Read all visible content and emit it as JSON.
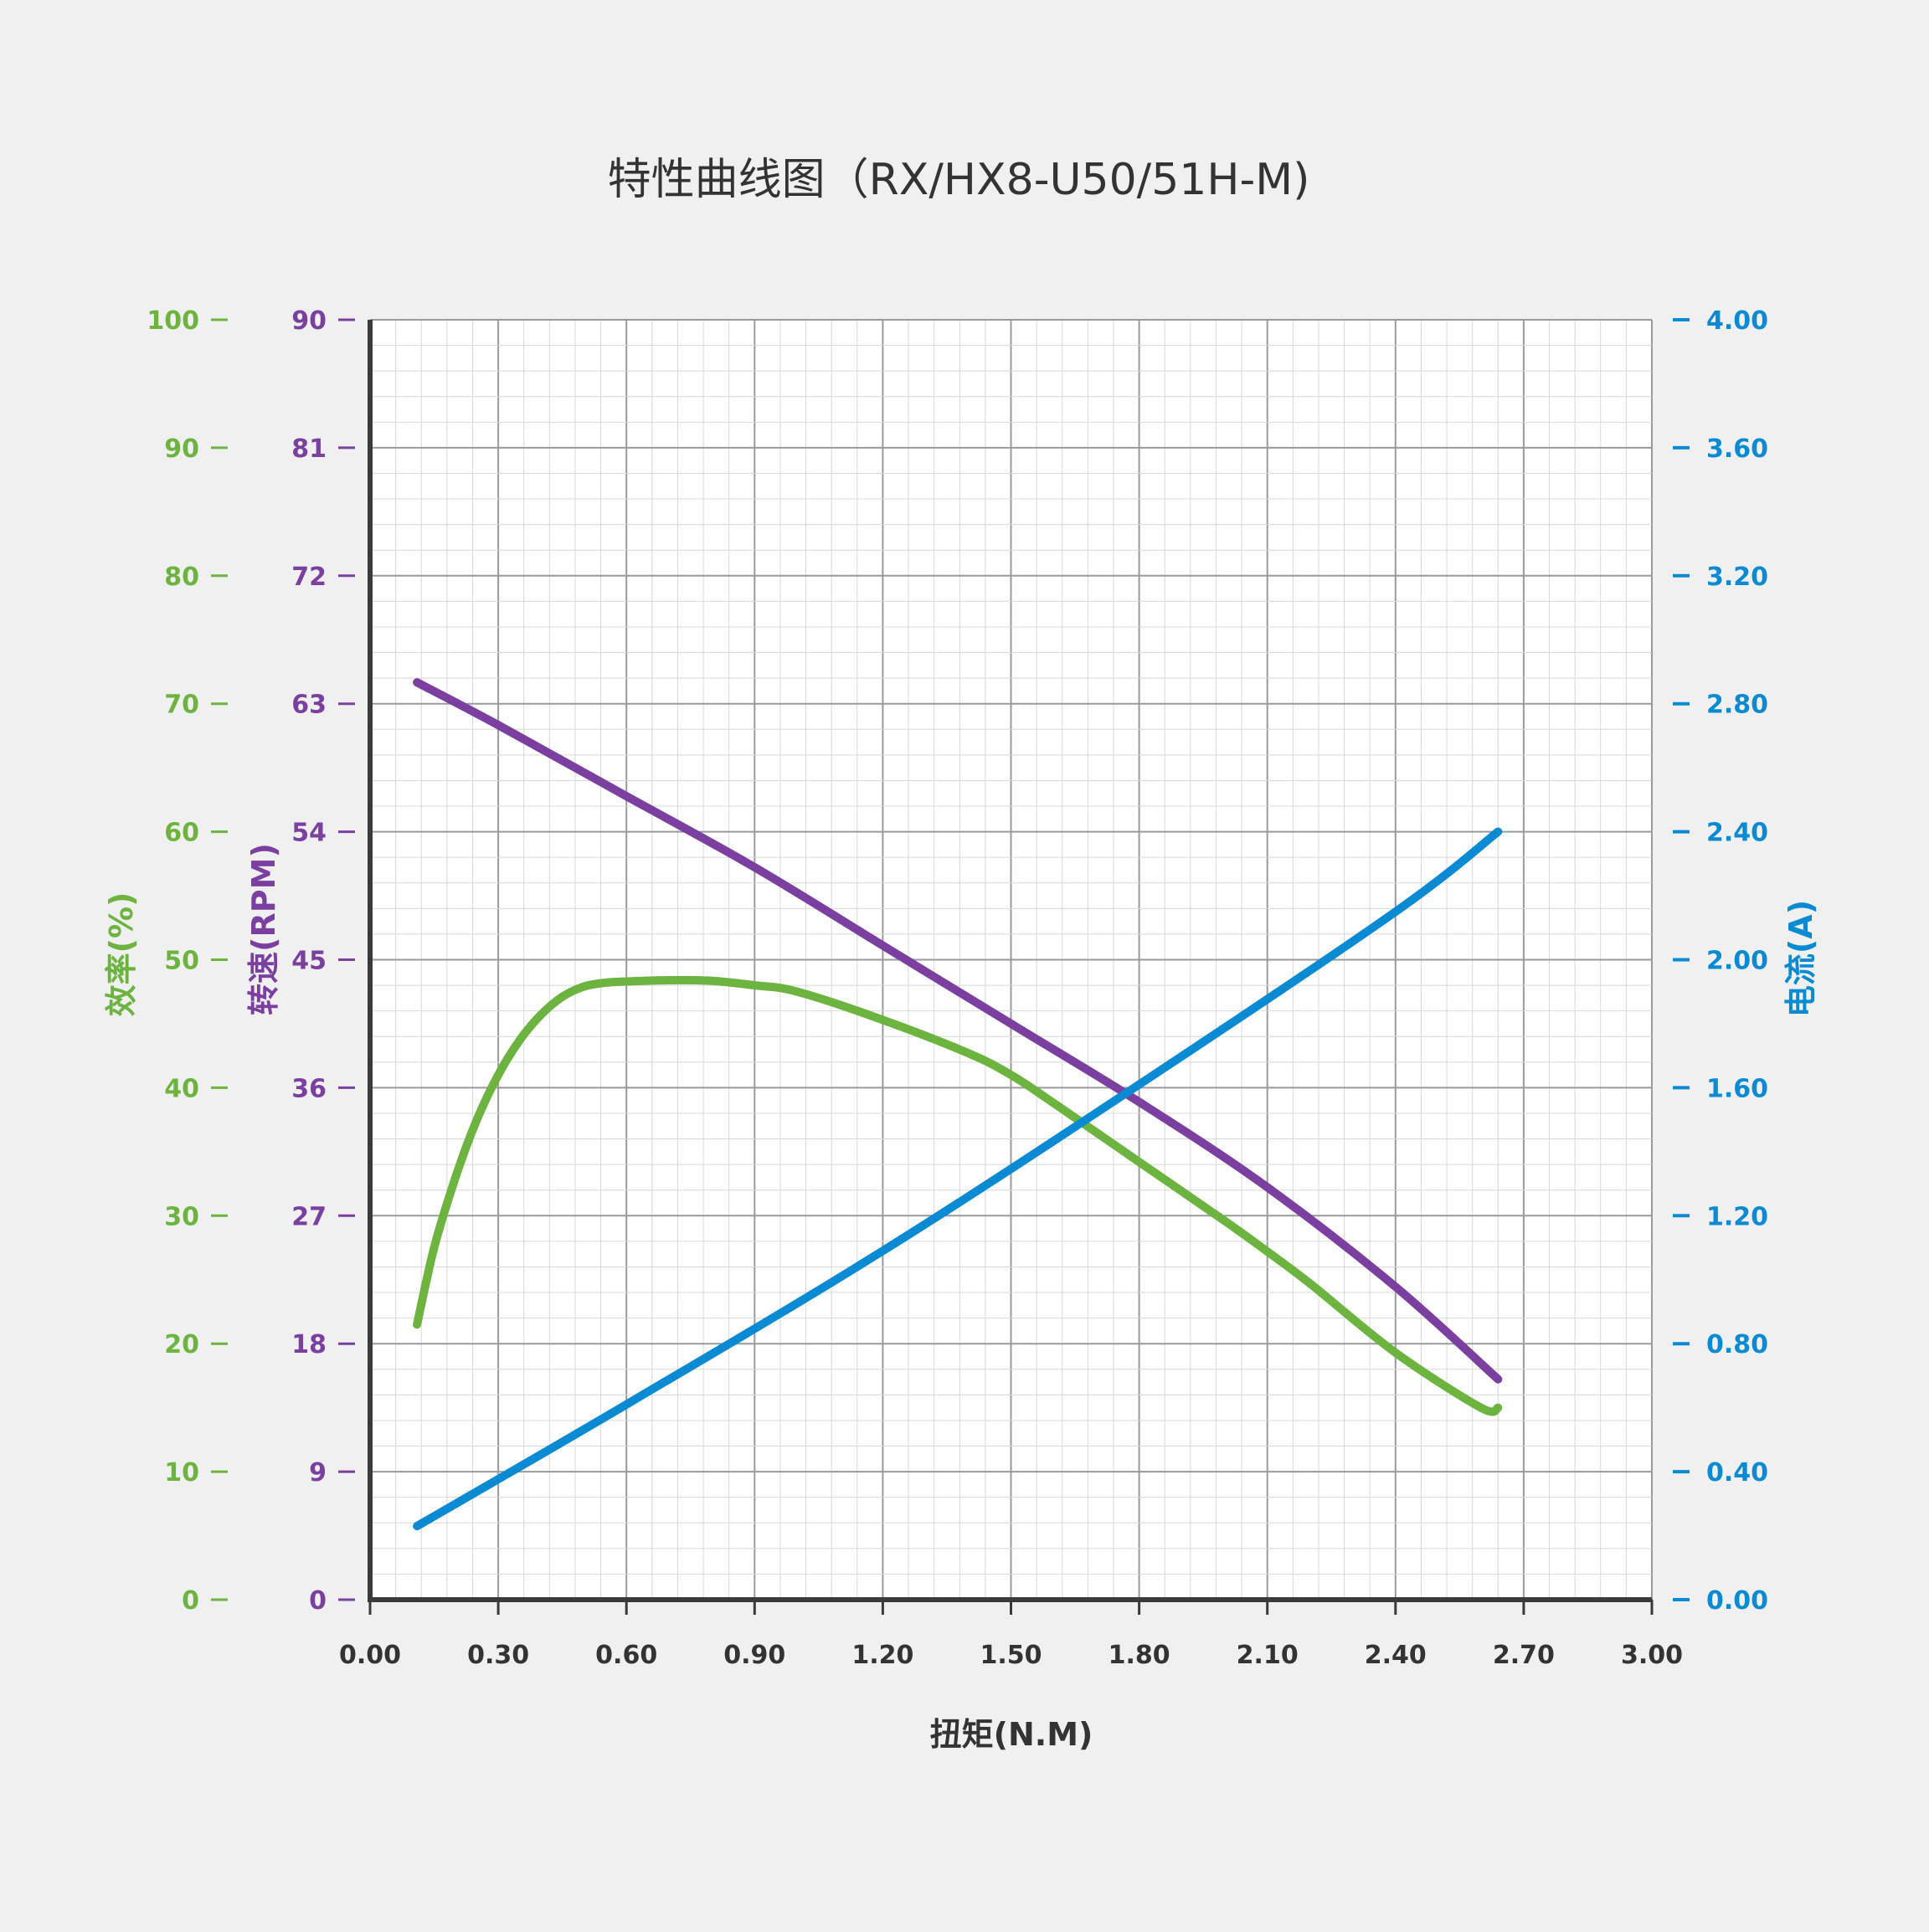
{
  "chart_data": {
    "type": "line",
    "title": "特性曲线图（RX/HX8-U50/51H-M)",
    "xlabel": "扭矩(N.M)",
    "xlim": [
      0,
      3
    ],
    "x_ticks": [
      "0.00",
      "0.30",
      "0.60",
      "0.90",
      "1.20",
      "1.50",
      "1.80",
      "2.10",
      "2.40",
      "2.70",
      "3.00"
    ],
    "grid": true,
    "axes": {
      "efficiency": {
        "label": "效率(%)",
        "side": "left-outer",
        "color": "#6cb33f",
        "ylim": [
          0,
          100
        ],
        "ticks": [
          "0",
          "10",
          "20",
          "30",
          "40",
          "50",
          "60",
          "70",
          "80",
          "90",
          "100"
        ]
      },
      "speed": {
        "label": "转速(RPM)",
        "side": "left-inner",
        "color": "#7b3fa0",
        "ylim": [
          0,
          90
        ],
        "ticks": [
          "0",
          "9",
          "18",
          "27",
          "36",
          "45",
          "54",
          "63",
          "72",
          "81",
          "90"
        ]
      },
      "current": {
        "label": "电流(A)",
        "side": "right",
        "color": "#0a8ad3",
        "ylim": [
          0,
          4
        ],
        "ticks": [
          "0.00",
          "0.40",
          "0.80",
          "1.20",
          "1.60",
          "2.00",
          "2.40",
          "2.80",
          "3.20",
          "3.60",
          "4.00"
        ]
      }
    },
    "series": [
      {
        "axis": "speed",
        "color": "#7b3fa0",
        "x": [
          0.11,
          0.3,
          0.6,
          0.9,
          1.2,
          1.5,
          1.8,
          2.1,
          2.4,
          2.64
        ],
        "y": [
          64.5,
          61.5,
          56.5,
          51.5,
          46.0,
          40.5,
          35.0,
          29.0,
          22.0,
          15.5
        ]
      },
      {
        "axis": "efficiency",
        "color": "#6cb33f",
        "x": [
          0.11,
          0.15,
          0.2,
          0.25,
          0.3,
          0.35,
          0.4,
          0.45,
          0.5,
          0.55,
          0.6,
          0.7,
          0.8,
          0.9,
          1.0,
          1.2,
          1.4,
          1.5,
          1.6,
          1.8,
          2.0,
          2.1,
          2.2,
          2.4,
          2.6,
          2.64
        ],
        "y": [
          21.5,
          27.5,
          33.0,
          37.5,
          41.0,
          43.7,
          45.7,
          47.1,
          47.9,
          48.2,
          48.3,
          48.4,
          48.35,
          48.0,
          47.5,
          45.3,
          42.7,
          41.0,
          38.8,
          34.2,
          29.6,
          27.2,
          24.7,
          19.3,
          15.0,
          15.0
        ]
      },
      {
        "axis": "current",
        "color": "#0a8ad3",
        "x": [
          0.11,
          0.6,
          1.2,
          1.8,
          2.4,
          2.64
        ],
        "y": [
          0.23,
          0.61,
          1.09,
          1.61,
          2.15,
          2.4
        ]
      }
    ]
  }
}
